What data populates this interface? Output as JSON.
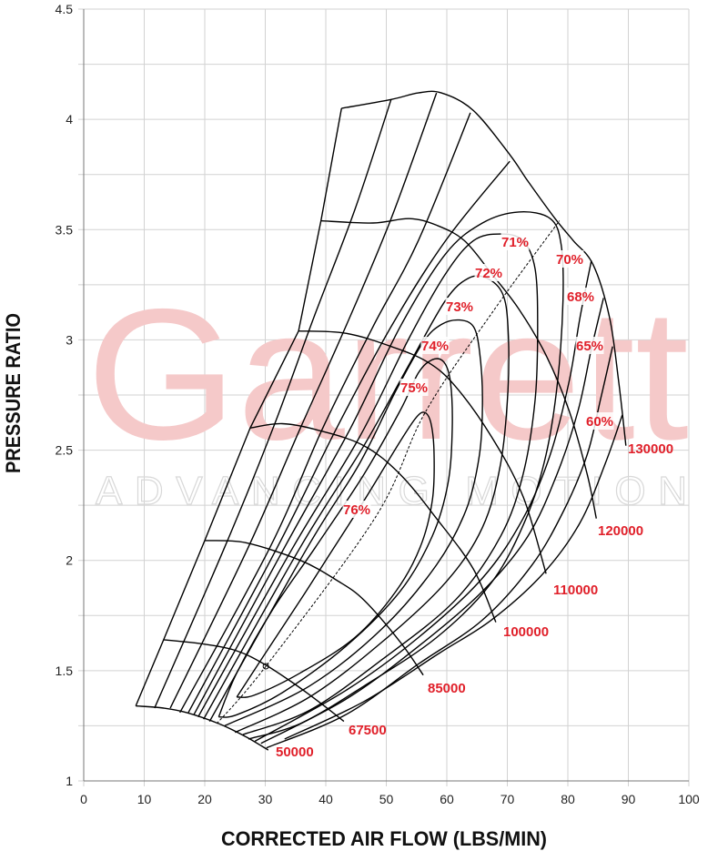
{
  "watermark": {
    "brand": "Garrett",
    "tagline": "ADVANCING MOTION"
  },
  "chart_data": {
    "type": "line",
    "title": "",
    "xlabel": "CORRECTED AIR FLOW (LBS/MIN)",
    "ylabel": "PRESSURE RATIO",
    "xlim": [
      0,
      100
    ],
    "ylim": [
      1,
      4.5
    ],
    "xticks": [
      "0",
      "10",
      "20",
      "30",
      "40",
      "50",
      "60",
      "70",
      "80",
      "90",
      "100"
    ],
    "yticks": [
      "1",
      "1.5",
      "2",
      "2.5",
      "3",
      "3.5",
      "4",
      "4.5"
    ],
    "grid": true,
    "x_grid_step": 10,
    "y_grid_step": 0.25,
    "colors": {
      "curves": "#000000",
      "labels": "#e0202a",
      "grid": "#d2d2d2",
      "watermark": "#f5c9c9"
    },
    "surge_line": [
      [
        8.6,
        1.34
      ],
      [
        13.2,
        1.64
      ],
      [
        20.0,
        2.09
      ],
      [
        27.5,
        2.6
      ],
      [
        35.5,
        3.04
      ],
      [
        39.2,
        3.54
      ],
      [
        42.6,
        4.05
      ]
    ],
    "peak_efficiency_line": [
      [
        22.0,
        1.26
      ],
      [
        30.1,
        1.52
      ],
      [
        48.3,
        2.2
      ],
      [
        56.4,
        2.67
      ],
      [
        67.4,
        3.12
      ],
      [
        78.6,
        3.54
      ]
    ],
    "speed_lines": [
      {
        "label": "50000",
        "points": [
          [
            8.6,
            1.34
          ],
          [
            13.2,
            1.33
          ],
          [
            17.0,
            1.31
          ],
          [
            22.3,
            1.26
          ],
          [
            26.8,
            1.2
          ],
          [
            30.5,
            1.14
          ]
        ]
      },
      {
        "label": "67500",
        "points": [
          [
            13.2,
            1.64
          ],
          [
            20.0,
            1.62
          ],
          [
            25.3,
            1.59
          ],
          [
            29.8,
            1.53
          ],
          [
            34.3,
            1.45
          ],
          [
            38.8,
            1.36
          ],
          [
            43.0,
            1.27
          ]
        ]
      },
      {
        "label": "85000",
        "points": [
          [
            20.0,
            2.09
          ],
          [
            26.8,
            2.08
          ],
          [
            35.8,
            2.0
          ],
          [
            41.8,
            1.91
          ],
          [
            46.3,
            1.82
          ],
          [
            52.3,
            1.63
          ],
          [
            56.1,
            1.48
          ]
        ]
      },
      {
        "label": "100000",
        "points": [
          [
            27.5,
            2.6
          ],
          [
            32.8,
            2.62
          ],
          [
            38.8,
            2.59
          ],
          [
            46.3,
            2.52
          ],
          [
            52.3,
            2.39
          ],
          [
            58.3,
            2.19
          ],
          [
            64.4,
            1.96
          ],
          [
            68.1,
            1.72
          ]
        ]
      },
      {
        "label": "110000",
        "points": [
          [
            35.5,
            3.04
          ],
          [
            43.3,
            3.03
          ],
          [
            50.8,
            2.97
          ],
          [
            56.8,
            2.9
          ],
          [
            61.4,
            2.79
          ],
          [
            67.4,
            2.56
          ],
          [
            72.6,
            2.29
          ],
          [
            76.4,
            1.94
          ]
        ]
      },
      {
        "label": "120000",
        "points": [
          [
            39.2,
            3.54
          ],
          [
            47.8,
            3.53
          ],
          [
            53.8,
            3.55
          ],
          [
            58.3,
            3.52
          ],
          [
            62.9,
            3.45
          ],
          [
            67.4,
            3.3
          ],
          [
            71.9,
            3.14
          ],
          [
            76.4,
            2.93
          ],
          [
            80.2,
            2.68
          ],
          [
            83.2,
            2.39
          ],
          [
            84.7,
            2.19
          ]
        ]
      },
      {
        "label": "130000",
        "points": [
          [
            42.6,
            4.05
          ],
          [
            50.8,
            4.09
          ],
          [
            55.3,
            4.12
          ],
          [
            59.1,
            4.12
          ],
          [
            64.4,
            4.04
          ],
          [
            70.4,
            3.84
          ],
          [
            73.4,
            3.72
          ],
          [
            77.9,
            3.55
          ],
          [
            80.9,
            3.45
          ],
          [
            84.2,
            3.34
          ],
          [
            86.9,
            3.1
          ],
          [
            88.4,
            2.81
          ],
          [
            89.6,
            2.52
          ]
        ]
      }
    ],
    "efficiency_contours": [
      {
        "label": "76%",
        "segments": [
          [
            [
              25.3,
              1.38
            ],
            [
              29.8,
              1.57
            ],
            [
              35.8,
              1.82
            ],
            [
              40.0,
              2.0
            ],
            [
              46.3,
              2.27
            ],
            [
              52.3,
              2.54
            ],
            [
              55.0,
              2.65
            ],
            [
              56.4,
              2.67
            ],
            [
              57.4,
              2.62
            ],
            [
              57.9,
              2.48
            ],
            [
              57.6,
              2.27
            ],
            [
              55.6,
              2.06
            ],
            [
              51.6,
              1.86
            ],
            [
              44.8,
              1.65
            ],
            [
              35.8,
              1.49
            ],
            [
              28.3,
              1.39
            ],
            [
              25.3,
              1.38
            ]
          ]
        ]
      },
      {
        "label": "75%",
        "segments": [
          [
            [
              22.3,
              1.29
            ],
            [
              25.3,
              1.49
            ],
            [
              31.3,
              1.78
            ],
            [
              38.3,
              2.06
            ],
            [
              46.3,
              2.39
            ],
            [
              52.3,
              2.68
            ],
            [
              55.3,
              2.85
            ],
            [
              57.6,
              2.91
            ],
            [
              59.5,
              2.9
            ],
            [
              60.6,
              2.81
            ],
            [
              60.9,
              2.6
            ],
            [
              60.2,
              2.35
            ],
            [
              57.6,
              2.11
            ],
            [
              52.3,
              1.86
            ],
            [
              43.3,
              1.61
            ],
            [
              32.8,
              1.4
            ],
            [
              25.3,
              1.3
            ],
            [
              22.3,
              1.29
            ]
          ]
        ]
      },
      {
        "label": "74%",
        "segments": [
          [
            [
              20.8,
              1.27
            ],
            [
              37.0,
              2.06
            ],
            [
              45.6,
              2.44
            ],
            [
              51.6,
              2.77
            ],
            [
              56.1,
              2.99
            ],
            [
              59.1,
              3.07
            ],
            [
              62.1,
              3.09
            ],
            [
              64.4,
              3.06
            ],
            [
              65.4,
              2.95
            ],
            [
              65.9,
              2.73
            ],
            [
              65.4,
              2.48
            ],
            [
              63.2,
              2.23
            ],
            [
              58.3,
              1.98
            ],
            [
              49.3,
              1.69
            ],
            [
              37.3,
              1.43
            ],
            [
              23.3,
              1.25
            ]
          ]
        ]
      },
      {
        "label": "73%",
        "segments": [
          [
            [
              19.8,
              1.28
            ],
            [
              35.8,
              2.06
            ],
            [
              46.3,
              2.52
            ],
            [
              53.8,
              2.89
            ],
            [
              59.8,
              3.18
            ],
            [
              63.6,
              3.28
            ],
            [
              66.6,
              3.28
            ],
            [
              69.2,
              3.21
            ],
            [
              70.1,
              3.06
            ],
            [
              70.1,
              2.77
            ],
            [
              68.9,
              2.44
            ],
            [
              65.9,
              2.15
            ],
            [
              59.8,
              1.9
            ],
            [
              49.3,
              1.63
            ],
            [
              37.3,
              1.38
            ],
            [
              25.0,
              1.22
            ]
          ]
        ]
      },
      {
        "label": "72%",
        "segments": [
          [
            [
              18.9,
              1.29
            ],
            [
              34.6,
              2.06
            ],
            [
              45.6,
              2.56
            ],
            [
              53.8,
              3.01
            ],
            [
              59.8,
              3.3
            ],
            [
              64.4,
              3.45
            ],
            [
              68.9,
              3.48
            ],
            [
              72.6,
              3.45
            ],
            [
              74.6,
              3.32
            ],
            [
              75.0,
              3.06
            ],
            [
              74.6,
              2.73
            ],
            [
              72.6,
              2.39
            ],
            [
              68.9,
              2.11
            ],
            [
              61.4,
              1.82
            ],
            [
              49.3,
              1.55
            ],
            [
              37.3,
              1.32
            ],
            [
              26.3,
              1.21
            ]
          ]
        ]
      },
      {
        "label": "71%",
        "segments": [
          [
            [
              18.2,
              1.3
            ],
            [
              33.2,
              2.06
            ],
            [
              44.1,
              2.6
            ],
            [
              52.3,
              3.06
            ],
            [
              59.8,
              3.39
            ],
            [
              65.9,
              3.53
            ],
            [
              71.9,
              3.58
            ],
            [
              77.1,
              3.55
            ],
            [
              78.9,
              3.43
            ],
            [
              79.2,
              3.18
            ],
            [
              78.3,
              2.81
            ],
            [
              76.4,
              2.48
            ],
            [
              73.1,
              2.19
            ],
            [
              67.4,
              1.9
            ],
            [
              58.3,
              1.65
            ],
            [
              46.3,
              1.43
            ],
            [
              35.8,
              1.26
            ],
            [
              27.2,
              1.19
            ]
          ]
        ]
      },
      {
        "label": "70%",
        "segments": [
          [
            [
              17.3,
              1.31
            ],
            [
              32.0,
              2.06
            ],
            [
              41.8,
              2.6
            ],
            [
              50.8,
              3.06
            ],
            [
              59.8,
              3.45
            ],
            [
              70.4,
              3.81
            ]
          ],
          [
            [
              83.9,
              3.36
            ],
            [
              82.0,
              3.1
            ],
            [
              80.2,
              2.81
            ],
            [
              77.1,
              2.48
            ],
            [
              72.6,
              2.19
            ],
            [
              65.9,
              1.92
            ],
            [
              55.3,
              1.65
            ],
            [
              43.3,
              1.41
            ],
            [
              28.3,
              1.18
            ]
          ]
        ]
      },
      {
        "label": "68%",
        "segments": [
          [
            [
              15.9,
              1.31
            ],
            [
              30.8,
              2.06
            ],
            [
              39.5,
              2.6
            ],
            [
              47.8,
              3.06
            ],
            [
              55.3,
              3.45
            ],
            [
              63.9,
              4.03
            ]
          ],
          [
            [
              85.9,
              3.19
            ],
            [
              83.9,
              2.96
            ],
            [
              81.7,
              2.68
            ],
            [
              78.2,
              2.39
            ],
            [
              73.4,
              2.11
            ],
            [
              65.9,
              1.86
            ],
            [
              55.3,
              1.61
            ],
            [
              43.3,
              1.37
            ],
            [
              29.3,
              1.17
            ]
          ]
        ]
      },
      {
        "label": "65%",
        "segments": [
          [
            [
              14.3,
              1.33
            ],
            [
              27.2,
              2.06
            ],
            [
              35.8,
              2.6
            ],
            [
              43.3,
              3.06
            ],
            [
              50.8,
              3.55
            ],
            [
              58.3,
              4.12
            ]
          ],
          [
            [
              87.4,
              2.97
            ],
            [
              85.4,
              2.73
            ],
            [
              83.2,
              2.48
            ],
            [
              79.4,
              2.23
            ],
            [
              74.1,
              1.98
            ],
            [
              65.9,
              1.73
            ],
            [
              55.3,
              1.53
            ],
            [
              43.3,
              1.3
            ],
            [
              30.2,
              1.15
            ]
          ]
        ]
      },
      {
        "label": "60%",
        "segments": [
          [
            [
              11.7,
              1.33
            ],
            [
              23.3,
              2.06
            ],
            [
              31.3,
              2.6
            ],
            [
              38.0,
              3.1
            ],
            [
              44.8,
              3.59
            ],
            [
              50.8,
              4.09
            ]
          ],
          [
            [
              89.0,
              2.66
            ],
            [
              86.2,
              2.44
            ],
            [
              82.0,
              2.17
            ],
            [
              75.9,
              1.94
            ],
            [
              67.4,
              1.73
            ],
            [
              58.8,
              1.58
            ],
            [
              46.3,
              1.36
            ],
            [
              33.2,
              1.19
            ]
          ]
        ]
      }
    ]
  }
}
